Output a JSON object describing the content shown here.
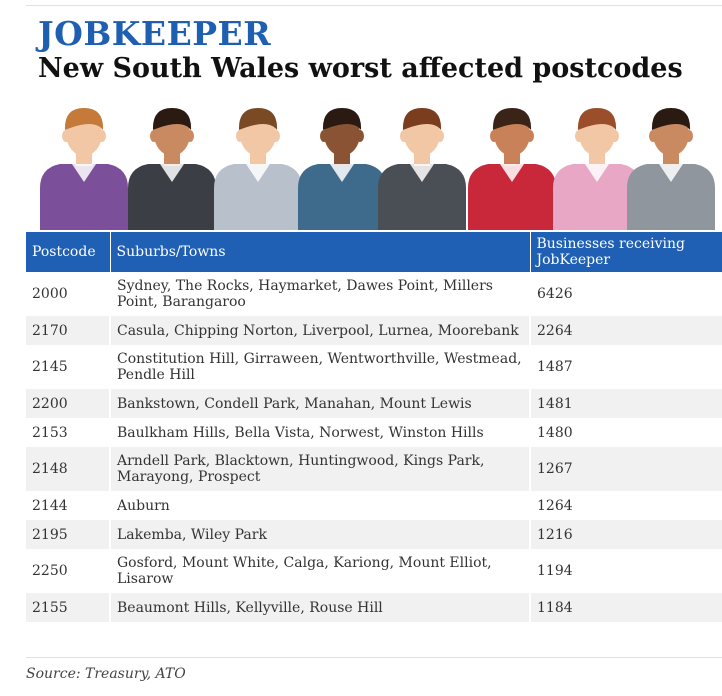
{
  "header": {
    "kicker": "JOBKEEPER",
    "title": "New South Wales worst affected postcodes"
  },
  "illustration": {
    "figures": [
      {
        "icon": "person-purple-shirt-icon",
        "shirt": "#7b4f9a",
        "skin": "#f2c7a5",
        "hair": "#c67a3a"
      },
      {
        "icon": "person-dark-suit-woman-icon",
        "shirt": "#3b3f45",
        "skin": "#c98a62",
        "hair": "#2a1a12"
      },
      {
        "icon": "person-grey-shirt-tie-icon",
        "shirt": "#b8c0cc",
        "skin": "#f2c7a5",
        "hair": "#7a4a24"
      },
      {
        "icon": "person-blue-suit-woman-icon",
        "shirt": "#3e6a8c",
        "skin": "#8a5434",
        "hair": "#2a1a12"
      },
      {
        "icon": "person-grey-suit-tie-icon",
        "shirt": "#4a4e55",
        "skin": "#f2c7a5",
        "hair": "#7a3e1e"
      },
      {
        "icon": "person-red-shirt-icon",
        "shirt": "#c8283a",
        "skin": "#c88158",
        "hair": "#3a2418"
      },
      {
        "icon": "person-pink-shirt-glasses-icon",
        "shirt": "#e8a7c4",
        "skin": "#f2c7a5",
        "hair": "#9a4f2a"
      },
      {
        "icon": "person-grey-jacket-woman-icon",
        "shirt": "#8f969d",
        "skin": "#c98a62",
        "hair": "#2a1a12"
      }
    ]
  },
  "chart_data": {
    "type": "table",
    "columns": [
      "Postcode",
      "Suburbs/Towns",
      "Businesses receiving JobKeeper"
    ],
    "rows": [
      {
        "postcode": "2000",
        "suburbs": "Sydney, The Rocks, Haymarket, Dawes Point, Millers Point, Barangaroo",
        "businesses": "6426"
      },
      {
        "postcode": "2170",
        "suburbs": "Casula, Chipping Norton, Liverpool, Lurnea, Moorebank",
        "businesses": "2264"
      },
      {
        "postcode": "2145",
        "suburbs": "Constitution Hill, Girraween, Wentworthville, Westmead, Pendle Hill",
        "businesses": "1487"
      },
      {
        "postcode": "2200",
        "suburbs": "Bankstown, Condell Park, Manahan, Mount Lewis",
        "businesses": "1481"
      },
      {
        "postcode": "2153",
        "suburbs": "Baulkham Hills, Bella Vista, Norwest, Winston Hills",
        "businesses": "1480"
      },
      {
        "postcode": "2148",
        "suburbs": "Arndell Park, Blacktown, Huntingwood, Kings Park, Marayong, Prospect",
        "businesses": "1267"
      },
      {
        "postcode": "2144",
        "suburbs": "Auburn",
        "businesses": "1264"
      },
      {
        "postcode": "2195",
        "suburbs": "Lakemba, Wiley Park",
        "businesses": "1216"
      },
      {
        "postcode": "2250",
        "suburbs": "Gosford, Mount White, Calga, Kariong, Mount Elliot, Lisarow",
        "businesses": "1194"
      },
      {
        "postcode": "2155",
        "suburbs": "Beaumont Hills, Kellyville, Rouse Hill",
        "businesses": "1184"
      }
    ]
  },
  "footer": {
    "source": "Source: Treasury, ATO"
  }
}
